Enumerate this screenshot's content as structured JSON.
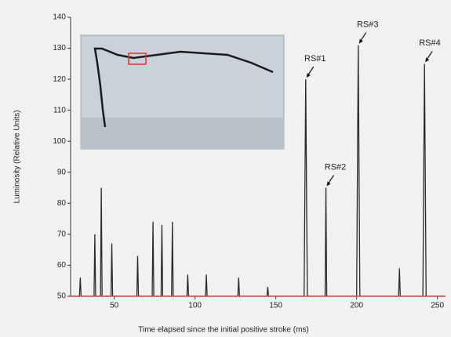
{
  "chart_data": {
    "type": "line",
    "x_label": "Time elapsed since the initial positive stroke (ms)",
    "y_label": "Luminosity (Relative Units)",
    "x": [
      23,
      28.5,
      29,
      29.5,
      37.5,
      38,
      38.5,
      41.5,
      42,
      42.5,
      48,
      48.5,
      49,
      64,
      64.5,
      65,
      73.5,
      74,
      74.5,
      79,
      79.5,
      80,
      85.5,
      86,
      86.5,
      95,
      95.5,
      96,
      106.5,
      107,
      107.5,
      126.5,
      127,
      127.5,
      144.5,
      145,
      145.5,
      167.5,
      168.5,
      169.5,
      180.5,
      181,
      181.5,
      200,
      201,
      202,
      226,
      226.5,
      227,
      241,
      242,
      243,
      255
    ],
    "values": [
      50,
      50,
      56,
      50,
      50,
      70,
      50,
      50,
      85,
      50,
      50,
      67,
      50,
      50,
      63,
      50,
      50,
      74,
      50,
      50,
      73,
      50,
      50,
      74,
      50,
      50,
      57,
      50,
      50,
      57,
      50,
      50,
      56,
      50,
      50,
      53,
      50,
      50,
      120,
      50,
      50,
      85,
      50,
      50,
      131,
      50,
      50,
      59,
      50,
      50,
      125,
      50,
      50
    ],
    "color": "#2a2a2a",
    "reference_line": {
      "value": 50,
      "color": "#d9534f"
    },
    "xlim": [
      23,
      255
    ],
    "ylim": [
      50,
      140
    ],
    "xticks": [
      50,
      100,
      150,
      200,
      250
    ],
    "yticks": [
      50,
      60,
      70,
      80,
      90,
      100,
      110,
      120,
      130,
      140
    ],
    "annotations": [
      {
        "text": "RS#1",
        "x": 168.5,
        "y": 120
      },
      {
        "text": "RS#2",
        "x": 181,
        "y": 85
      },
      {
        "text": "RS#3",
        "x": 201,
        "y": 131
      },
      {
        "text": "RS#4",
        "x": 242,
        "y": 125
      }
    ]
  }
}
